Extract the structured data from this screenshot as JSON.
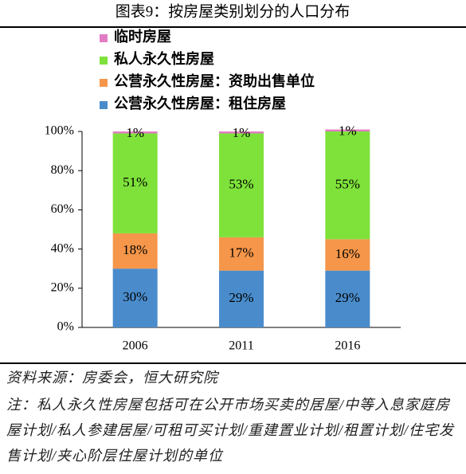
{
  "chart_data": {
    "type": "stacked_bar",
    "title": "图表9：按房屋类别划分的人口分布",
    "categories": [
      "2006",
      "2011",
      "2016"
    ],
    "series": [
      {
        "name": "公营永久性房屋：租住房屋",
        "color": "#4a8ccb",
        "values": [
          30,
          29,
          29
        ],
        "value_labels": [
          "30%",
          "29%",
          "29%"
        ]
      },
      {
        "name": "公营永久性房屋：资助出售单位",
        "color": "#f5964a",
        "values": [
          18,
          17,
          16
        ],
        "value_labels": [
          "18%",
          "17%",
          "16%"
        ]
      },
      {
        "name": "私人永久性房屋",
        "color": "#7ee23a",
        "values": [
          51,
          53,
          55
        ],
        "value_labels": [
          "51%",
          "53%",
          "55%"
        ]
      },
      {
        "name": "临时房屋",
        "color": "#e27cc4",
        "values": [
          1,
          1,
          1
        ],
        "value_labels": [
          "1%",
          "1%",
          "1%"
        ]
      }
    ],
    "ylim": [
      0,
      100
    ],
    "yticks": [
      {
        "value": 0,
        "label": "0%"
      },
      {
        "value": 20,
        "label": "20%"
      },
      {
        "value": 40,
        "label": "40%"
      },
      {
        "value": 60,
        "label": "60%"
      },
      {
        "value": 80,
        "label": "80%"
      },
      {
        "value": 100,
        "label": "100%"
      }
    ],
    "source": "资料来源：房委会，恒大研究院",
    "note": "注：私人永久性房屋包括可在公开市场买卖的居屋/中等入息家庭房屋计划/私人参建居屋/可租可买计划/重建置业计划/租置计划/住宅发售计划/夹心阶层住屋计划的单位"
  }
}
